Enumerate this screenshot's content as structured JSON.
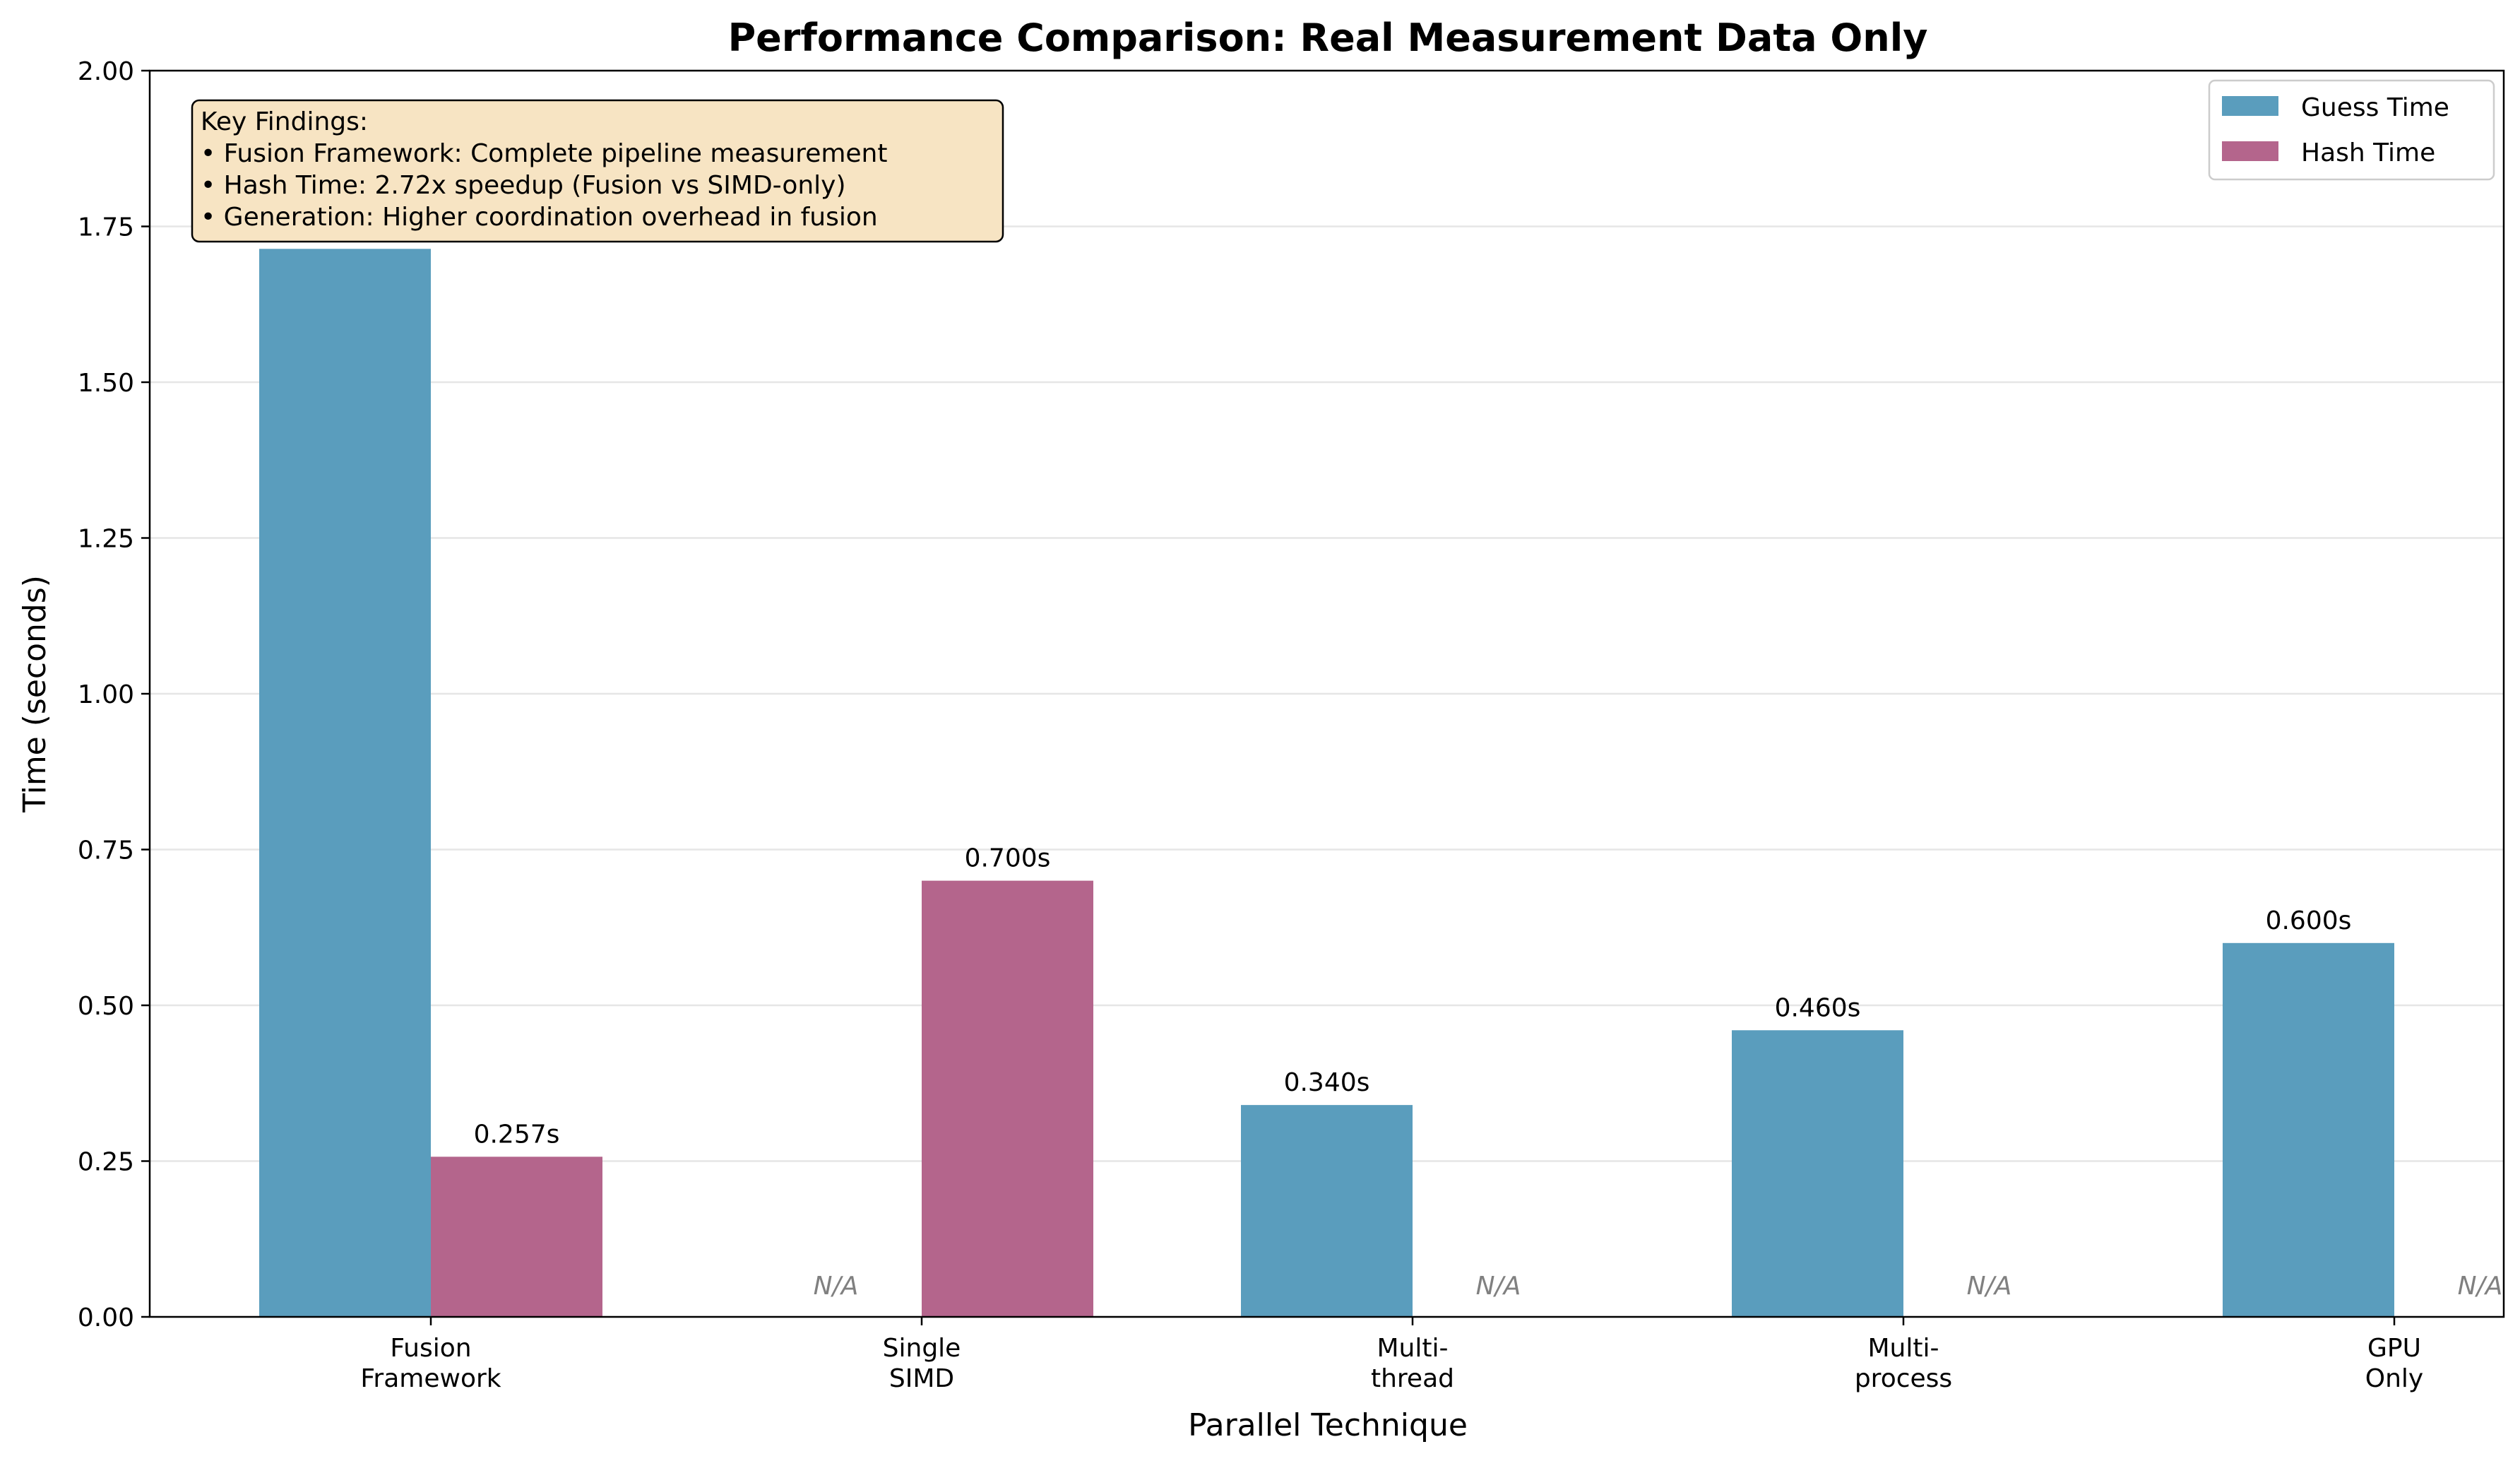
{
  "chart_data": {
    "type": "bar",
    "title": "Performance Comparison: Real Measurement Data Only",
    "xlabel": "Parallel Technique",
    "ylabel": "Time (seconds)",
    "ylim": [
      0,
      2.0
    ],
    "yticks": [
      "0.00",
      "0.25",
      "0.50",
      "0.75",
      "1.00",
      "1.25",
      "1.50",
      "1.75",
      "2.00"
    ],
    "grid": "y",
    "categories": [
      [
        "Fusion",
        "Framework"
      ],
      [
        "Single",
        "SIMD"
      ],
      [
        "Multi-",
        "thread"
      ],
      [
        "Multi-",
        "process"
      ],
      [
        "GPU",
        "Only"
      ]
    ],
    "series": [
      {
        "name": "Guess Time",
        "color": "#5a9dbd",
        "values": [
          1.714,
          null,
          0.34,
          0.46,
          0.6
        ],
        "labels": [
          "1.714s",
          "N/A",
          "0.340s",
          "0.460s",
          "0.600s"
        ]
      },
      {
        "name": "Hash Time",
        "color": "#b4658c",
        "values": [
          0.257,
          0.7,
          null,
          null,
          null
        ],
        "labels": [
          "0.257s",
          "0.700s",
          "N/A",
          "N/A",
          "N/A"
        ]
      }
    ],
    "legend_position": "top-right",
    "annotation": {
      "lines": [
        "Key Findings:",
        "• Fusion Framework: Complete pipeline measurement",
        "• Hash Time: 2.72x speedup (Fusion vs SIMD-only)",
        "• Generation: Higher coordination overhead in fusion"
      ],
      "background": "#f7e4c3"
    }
  }
}
